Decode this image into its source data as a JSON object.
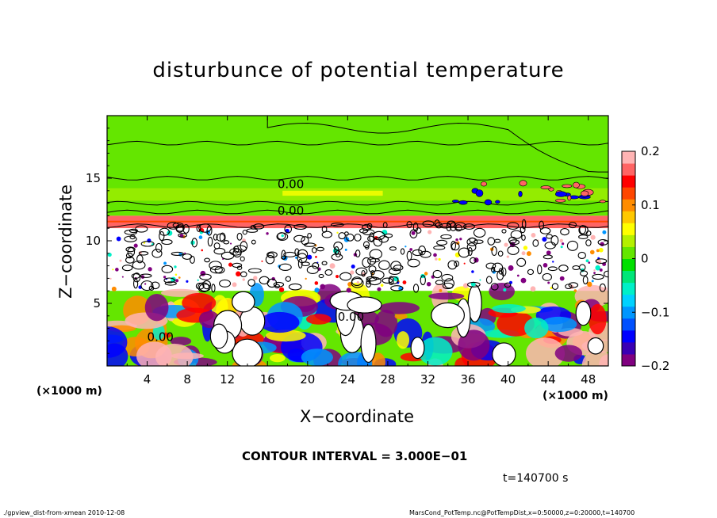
{
  "chart_data": {
    "type": "heatmap",
    "title": "disturbunce of potential temperature",
    "xlabel": "X−coordinate",
    "ylabel": "Z−coordinate",
    "x_unit": "(×1000 m)",
    "xlim": [
      0,
      50
    ],
    "ylim": [
      0,
      20
    ],
    "x_ticks": [
      4,
      8,
      12,
      16,
      20,
      24,
      28,
      32,
      36,
      40,
      44,
      48
    ],
    "y_ticks": [
      5,
      10,
      15
    ],
    "contour_labels": [
      "0.00",
      "0.00",
      "0.00",
      "0.00"
    ],
    "colorbar": {
      "min": -0.2,
      "max": 0.2,
      "tick_values": [
        0.2,
        0.1,
        0,
        -0.1,
        -0.2
      ],
      "tick_labels": [
        "0.2",
        "0.1",
        "0",
        "−0.1",
        "−0.2"
      ],
      "colors": [
        "#800080",
        "#3a00b4",
        "#0000ff",
        "#0050ff",
        "#0096ff",
        "#00d2ff",
        "#00f0c8",
        "#00e678",
        "#00e000",
        "#64e600",
        "#b4f000",
        "#ffff00",
        "#ffc800",
        "#ff8c00",
        "#ff4600",
        "#ff0000",
        "#ff6464",
        "#ffb4b4"
      ]
    },
    "layers": [
      {
        "z_range": [
          0,
          6
        ],
        "description": "strong positive and negative disturbances"
      },
      {
        "z_range": [
          6,
          11
        ],
        "description": "dense contours near zero"
      },
      {
        "z_range": [
          11,
          12
        ],
        "value": 0.17
      },
      {
        "z_range": [
          12,
          20
        ],
        "value": 0.0
      }
    ]
  },
  "annotations": {
    "contour_interval": "CONTOUR INTERVAL = 3.000E−01",
    "time": "t=140700 s"
  },
  "footer": {
    "left": "./gpview_dist-from-xmean  2010-12-08",
    "right": "MarsCond_PotTemp.nc@PotTempDist,x=0:50000,z=0:20000,t=140700"
  }
}
